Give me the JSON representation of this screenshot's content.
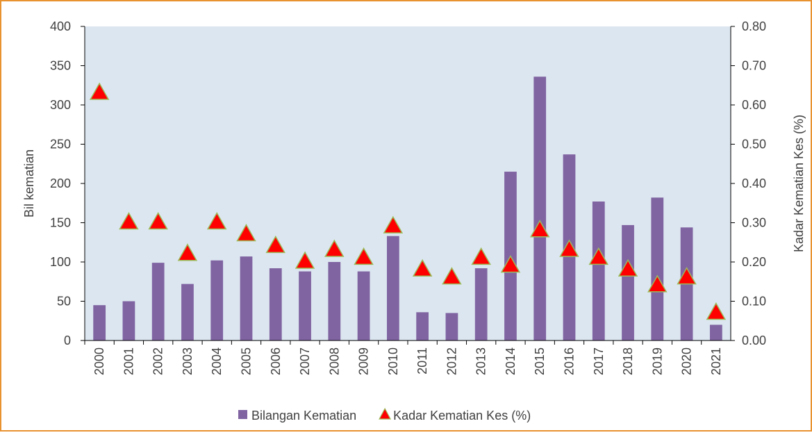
{
  "chart_data": {
    "type": "bar_line",
    "categories": [
      "2000",
      "2001",
      "2002",
      "2003",
      "2004",
      "2005",
      "2006",
      "2007",
      "2008",
      "2009",
      "2010",
      "2011",
      "2012",
      "2013",
      "2014",
      "2015",
      "2016",
      "2017",
      "2018",
      "2019",
      "2020",
      "2021"
    ],
    "ylabel": "Bil kematian",
    "y2label": "Kadar Kematian Kes (%)",
    "ylim": [
      0,
      400
    ],
    "yticks": [
      0,
      50,
      100,
      150,
      200,
      250,
      300,
      350,
      400
    ],
    "y2lim": [
      0,
      0.8
    ],
    "y2ticks": [
      {
        "value": 0,
        "label": "0.00"
      },
      {
        "value": 0.1,
        "label": "0.10"
      },
      {
        "value": 0.2,
        "label": "0.20"
      },
      {
        "value": 0.3,
        "label": "0.30"
      },
      {
        "value": 0.4,
        "label": "0.40"
      },
      {
        "value": 0.5,
        "label": "0.50"
      },
      {
        "value": 0.6,
        "label": "0.60"
      },
      {
        "value": 0.7,
        "label": "0.70"
      },
      {
        "value": 0.8,
        "label": "0.80"
      }
    ],
    "legend": "bottom",
    "series": [
      {
        "name": "Bilangan Kematian",
        "type": "bar",
        "color": "#8064a2",
        "values": [
          45,
          50,
          99,
          72,
          102,
          107,
          92,
          88,
          100,
          88,
          133,
          36,
          35,
          92,
          215,
          336,
          237,
          177,
          147,
          182,
          144,
          20
        ]
      },
      {
        "name": "Kadar Kematian Kes (%)",
        "type": "marker",
        "axis": "y2",
        "color": "#ff0000",
        "edge_color": "#9bbb59",
        "values": [
          0.63,
          0.3,
          0.3,
          0.22,
          0.3,
          0.27,
          0.24,
          0.2,
          0.23,
          0.21,
          0.29,
          0.18,
          0.16,
          0.21,
          0.19,
          0.28,
          0.23,
          0.21,
          0.18,
          0.14,
          0.16,
          0.07
        ]
      }
    ]
  }
}
